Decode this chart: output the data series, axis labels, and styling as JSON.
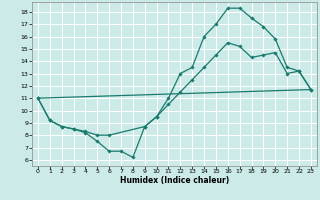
{
  "xlabel": "Humidex (Indice chaleur)",
  "bg_color": "#cceae7",
  "grid_color": "#ffffff",
  "line_color": "#1a7a6e",
  "marker": "D",
  "markersize": 1.8,
  "linewidth": 0.9,
  "xlim": [
    -0.5,
    23.5
  ],
  "ylim": [
    5.5,
    18.8
  ],
  "xticks": [
    0,
    1,
    2,
    3,
    4,
    5,
    6,
    7,
    8,
    9,
    10,
    11,
    12,
    13,
    14,
    15,
    16,
    17,
    18,
    19,
    20,
    21,
    22,
    23
  ],
  "yticks": [
    6,
    7,
    8,
    9,
    10,
    11,
    12,
    13,
    14,
    15,
    16,
    17,
    18
  ],
  "curve1_x": [
    0,
    1,
    2,
    3,
    4,
    5,
    6,
    7,
    8,
    9,
    10,
    11,
    12,
    13,
    14,
    15,
    16,
    17,
    18,
    19,
    20,
    21,
    22,
    23
  ],
  "curve1_y": [
    11.0,
    9.2,
    8.7,
    8.5,
    8.2,
    7.5,
    6.7,
    6.7,
    6.2,
    8.7,
    9.5,
    11.0,
    13.0,
    13.5,
    16.0,
    17.0,
    18.3,
    18.3,
    17.5,
    16.8,
    15.8,
    13.5,
    13.2,
    11.7
  ],
  "curve2_x": [
    0,
    1,
    2,
    3,
    4,
    5,
    6,
    9,
    10,
    11,
    12,
    13,
    14,
    15,
    16,
    17,
    18,
    19,
    20,
    21,
    22,
    23
  ],
  "curve2_y": [
    11.0,
    9.2,
    8.7,
    8.5,
    8.3,
    8.0,
    8.0,
    8.7,
    9.5,
    10.5,
    11.5,
    12.5,
    13.5,
    14.5,
    15.5,
    15.2,
    14.3,
    14.5,
    14.7,
    13.0,
    13.2,
    11.7
  ],
  "curve3_x": [
    0,
    23
  ],
  "curve3_y": [
    11.0,
    11.7
  ]
}
